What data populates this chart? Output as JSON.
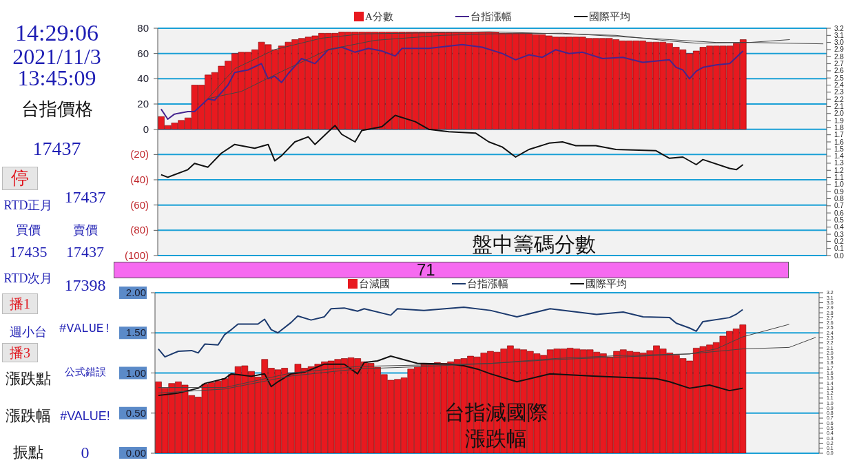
{
  "chart_data": [
    {
      "type": "other",
      "annotations": [
        "14:29:06",
        "2021/11/3",
        "13:45:09",
        "台指價格",
        "17437",
        "停",
        "RTD正月",
        "17437",
        "買價",
        "賣價",
        "17435",
        "17437",
        "RTD次月",
        "17398",
        "播1",
        "週小台",
        "#VALUE!",
        "播3",
        "漲跌點",
        "公式錯誤",
        "漲跌幅",
        "#VALUE!",
        "振點",
        "0"
      ]
    },
    {
      "type": "bar",
      "title": "盤中籌碼分數",
      "annotations": [
        "71"
      ],
      "legend": "top",
      "grid": "y",
      "categories": [
        null,
        null,
        null,
        null,
        null,
        null,
        null,
        null,
        null,
        null,
        null,
        null,
        null,
        null,
        null,
        null,
        null,
        null,
        null,
        null,
        null,
        null,
        null,
        null,
        null,
        null,
        null,
        null,
        null,
        null,
        null,
        null,
        null,
        null,
        null,
        null,
        null,
        null,
        null,
        null,
        null,
        null,
        null,
        null,
        null,
        null,
        null,
        null,
        null,
        null,
        null,
        null,
        null,
        null,
        null,
        null,
        null,
        null,
        null,
        null,
        null,
        null,
        null,
        null,
        null,
        null,
        null,
        null,
        null,
        null,
        null,
        null,
        null,
        null,
        null,
        null,
        null,
        null,
        null,
        null,
        null,
        null,
        null,
        null,
        null,
        null,
        null,
        null,
        null,
        null,
        null,
        null,
        null,
        null,
        null,
        null,
        null,
        null,
        null,
        null
      ],
      "ylim": [
        -100,
        80
      ],
      "yticks": [
        {
          "value": -100,
          "label": "(100)"
        },
        {
          "value": -80,
          "label": "(80)"
        },
        {
          "value": -60,
          "label": "(60)"
        },
        {
          "value": -40,
          "label": "(40)"
        },
        {
          "value": -20,
          "label": "(20)"
        },
        0,
        20,
        40,
        60,
        80
      ],
      "y2lim": [
        0,
        3.2
      ],
      "y2ticks": [
        {
          "value": 0,
          "label": "0.0"
        },
        0.1,
        0.2,
        0.3,
        0.4,
        0.5,
        0.6,
        0.7,
        0.8,
        0.9,
        {
          "value": 1,
          "label": "1.0"
        },
        1.1,
        1.2,
        1.3,
        1.4,
        1.5,
        1.6,
        1.7,
        1.8,
        1.9,
        {
          "value": 2,
          "label": "2.0"
        },
        2.1,
        2.2,
        2.3,
        2.4,
        2.5,
        2.6,
        2.7,
        2.8,
        2.9,
        {
          "value": 3,
          "label": "3.0"
        },
        3.1,
        3.2
      ],
      "series": [
        {
          "name": "A分數",
          "type": "bar",
          "color": "#e8191f",
          "values": [
            10,
            3,
            5,
            7,
            9,
            35,
            35,
            43,
            45,
            50,
            54,
            60,
            61,
            61,
            63,
            69,
            67,
            63,
            66,
            69,
            71,
            72,
            73,
            74,
            76,
            76,
            76,
            77,
            77,
            77,
            77,
            77,
            77,
            77,
            77,
            77,
            77,
            77,
            77,
            77,
            77,
            77,
            77,
            77,
            77,
            77,
            77,
            77,
            77,
            77,
            77,
            76,
            76,
            76,
            76,
            76,
            75,
            75,
            74,
            73,
            73,
            73,
            73,
            73,
            72,
            72,
            72,
            72,
            71,
            70,
            70,
            70,
            70,
            69,
            69,
            69,
            68,
            65,
            63,
            60,
            62,
            65,
            66,
            66,
            66,
            66,
            68,
            71,
            null,
            null,
            null,
            null,
            null,
            null,
            null,
            null,
            null,
            null,
            null,
            null
          ]
        },
        {
          "name": "台指漲幅",
          "type": "line",
          "color": "#45258f",
          "values": [
            16,
            8,
            12,
            null,
            14,
            14,
            null,
            24,
            23,
            null,
            35,
            45,
            null,
            47,
            null,
            52,
            40,
            42,
            37,
            44,
            null,
            56,
            null,
            52,
            null,
            63,
            null,
            65,
            null,
            61,
            null,
            64,
            null,
            62,
            null,
            58,
            64,
            null,
            null,
            null,
            64,
            null,
            null,
            null,
            null,
            67,
            null,
            null,
            65,
            null,
            null,
            60,
            null,
            55,
            null,
            59,
            null,
            57,
            null,
            63,
            null,
            60,
            null,
            61,
            null,
            null,
            56,
            null,
            null,
            57,
            null,
            null,
            53,
            null,
            null,
            null,
            55,
            49,
            47,
            40,
            46,
            49,
            null,
            51,
            null,
            52,
            57,
            62,
            null,
            null,
            null,
            null,
            null,
            null,
            null,
            null,
            null,
            null,
            null,
            null
          ]
        },
        {
          "name": "國際平均",
          "type": "line",
          "color": "#111111",
          "values": [
            -36,
            -38,
            null,
            null,
            -32,
            -27,
            null,
            -30,
            null,
            -19,
            null,
            -12,
            null,
            null,
            -15,
            null,
            -12,
            -25,
            -21,
            null,
            -10,
            null,
            -6,
            -12,
            null,
            -2,
            3,
            -4,
            null,
            -10,
            -1,
            null,
            null,
            2,
            null,
            11,
            null,
            null,
            6,
            null,
            0,
            null,
            null,
            -2,
            null,
            null,
            null,
            -3,
            null,
            -10,
            null,
            -14,
            null,
            -22,
            null,
            -16,
            null,
            null,
            -11,
            null,
            -10,
            null,
            -13,
            null,
            null,
            -13,
            null,
            null,
            -16,
            null,
            null,
            null,
            null,
            null,
            -17,
            -20,
            -23,
            null,
            -22,
            null,
            -28,
            -24,
            null,
            null,
            null,
            -31,
            -32,
            -28,
            null,
            null,
            null,
            null,
            null,
            null,
            null,
            null,
            null,
            null,
            null,
            null
          ]
        },
        {
          "type": "line",
          "axis": "y2",
          "color": "#444444",
          "values": [
            null,
            null,
            null,
            null,
            null,
            null,
            null,
            2.21,
            null,
            null,
            null,
            2.63,
            null,
            null,
            null,
            null,
            null,
            2.9,
            null,
            null,
            null,
            null,
            null,
            null,
            3.06,
            null,
            null,
            null,
            null,
            null,
            3.12,
            null,
            null,
            null,
            null,
            null,
            null,
            null,
            null,
            null,
            null,
            null,
            null,
            null,
            null,
            null,
            null,
            null,
            null,
            3.15,
            null,
            null,
            null,
            null,
            null,
            null,
            null,
            null,
            null,
            null,
            null,
            null,
            null,
            null,
            null,
            null,
            null,
            null,
            3.1,
            null,
            null,
            null,
            null,
            null,
            null,
            null,
            3.02,
            null,
            null,
            null,
            2.99,
            null,
            null,
            null,
            null,
            null,
            null,
            null,
            3.0,
            null,
            null,
            null,
            null,
            null,
            3.04,
            null,
            null,
            null,
            null,
            null
          ]
        },
        {
          "type": "line",
          "axis": "y2",
          "color": "#444444",
          "values": [
            null,
            null,
            null,
            null,
            null,
            null,
            null,
            2.21,
            null,
            null,
            null,
            null,
            2.31,
            null,
            null,
            null,
            null,
            null,
            2.59,
            null,
            null,
            null,
            null,
            null,
            null,
            2.9,
            null,
            null,
            null,
            null,
            null,
            null,
            3.03,
            null,
            null,
            null,
            null,
            null,
            null,
            null,
            null,
            null,
            3.1,
            null,
            null,
            null,
            null,
            null,
            null,
            3.12,
            null,
            null,
            null,
            null,
            null,
            null,
            null,
            null,
            null,
            null,
            3.13,
            null,
            null,
            null,
            null,
            null,
            null,
            null,
            null,
            null,
            null,
            null,
            null,
            null,
            null,
            null,
            3.04,
            null,
            null,
            null,
            null,
            null,
            null,
            3.0,
            null,
            null,
            null,
            null,
            3.0,
            null,
            null,
            null,
            null,
            null,
            null,
            null,
            null,
            null,
            null,
            2.98
          ]
        }
      ]
    },
    {
      "type": "bar",
      "title": "台指減國際漲跌幅",
      "legend": "top",
      "grid": "y",
      "categories": [
        null,
        null,
        null,
        null,
        null,
        null,
        null,
        null,
        null,
        null,
        null,
        null,
        null,
        null,
        null,
        null,
        null,
        null,
        null,
        null,
        null,
        null,
        null,
        null,
        null,
        null,
        null,
        null,
        null,
        null,
        null,
        null,
        null,
        null,
        null,
        null,
        null,
        null,
        null,
        null,
        null,
        null,
        null,
        null,
        null,
        null,
        null,
        null,
        null,
        null,
        null,
        null,
        null,
        null,
        null,
        null,
        null,
        null,
        null,
        null,
        null,
        null,
        null,
        null,
        null,
        null,
        null,
        null,
        null,
        null,
        null,
        null,
        null,
        null,
        null,
        null,
        null,
        null,
        null,
        null,
        null,
        null,
        null,
        null,
        null,
        null,
        null,
        null,
        null,
        null,
        null,
        null,
        null,
        null,
        null,
        null,
        null,
        null,
        null,
        null
      ],
      "ylim": [
        0,
        2
      ],
      "yticks": [
        {
          "value": 0,
          "label": "0.00"
        },
        {
          "value": 0.5,
          "label": "0.50"
        },
        {
          "value": 1,
          "label": "1.00"
        },
        {
          "value": 1.5,
          "label": "1.50"
        },
        {
          "value": 2,
          "label": "2.00"
        }
      ],
      "y2lim": [
        0,
        3.2
      ],
      "y2ticks": [
        {
          "value": 0,
          "label": "0.0"
        },
        0.1,
        0.2,
        0.3,
        0.4,
        0.5,
        0.6,
        0.7,
        0.8,
        0.9,
        {
          "value": 1,
          "label": "1.0"
        },
        1.1,
        1.2,
        1.3,
        1.4,
        1.5,
        1.6,
        1.7,
        1.8,
        1.9,
        {
          "value": 2,
          "label": "2.0"
        },
        2.1,
        2.2,
        2.3,
        2.4,
        2.5,
        2.6,
        2.7,
        2.8,
        2.9,
        {
          "value": 3,
          "label": "3.0"
        },
        3.1,
        3.2
      ],
      "series": [
        {
          "name": "台減國",
          "type": "bar",
          "color": "#e8191f",
          "values": [
            0.89,
            0.81,
            0.87,
            0.89,
            0.85,
            0.72,
            0.7,
            0.86,
            0.88,
            0.9,
            0.93,
            0.98,
            1.08,
            1.09,
            1.02,
            0.95,
            1.17,
            1.06,
            1.04,
            1.06,
            1.0,
            1.11,
            1.06,
            1.08,
            1.11,
            1.14,
            1.15,
            1.17,
            1.18,
            1.19,
            1.18,
            1.14,
            1.12,
            1.07,
            0.98,
            0.91,
            0.92,
            0.94,
            1.05,
            1.08,
            1.12,
            1.12,
            1.13,
            1.12,
            1.14,
            1.17,
            1.18,
            1.21,
            1.2,
            1.25,
            1.27,
            1.26,
            1.3,
            1.34,
            1.3,
            1.29,
            1.27,
            1.24,
            1.22,
            1.29,
            1.3,
            1.3,
            1.31,
            1.3,
            1.29,
            1.29,
            1.26,
            1.24,
            1.2,
            1.27,
            1.29,
            1.27,
            1.26,
            1.25,
            1.28,
            1.34,
            1.3,
            1.25,
            1.22,
            1.18,
            1.15,
            1.31,
            1.33,
            1.35,
            1.38,
            1.46,
            1.52,
            1.55,
            1.6,
            null,
            null,
            null,
            null,
            null,
            null,
            null,
            null,
            null,
            null,
            null
          ]
        },
        {
          "name": "台指漲幅",
          "type": "line",
          "color": "#1c3a6e",
          "values": [
            1.3,
            1.2,
            null,
            1.27,
            null,
            1.28,
            1.25,
            1.36,
            null,
            1.35,
            1.48,
            1.54,
            1.61,
            null,
            null,
            1.61,
            1.67,
            1.54,
            1.5,
            null,
            1.63,
            1.71,
            null,
            1.66,
            null,
            1.7,
            1.8,
            null,
            1.81,
            null,
            1.77,
            1.8,
            null,
            null,
            null,
            1.72,
            1.8,
            null,
            null,
            null,
            1.78,
            null,
            null,
            null,
            null,
            null,
            1.82,
            null,
            null,
            null,
            1.78,
            null,
            null,
            null,
            1.7,
            null,
            null,
            null,
            null,
            1.8,
            null,
            null,
            null,
            null,
            null,
            null,
            1.73,
            null,
            null,
            null,
            1.76,
            null,
            null,
            1.7,
            null,
            null,
            null,
            1.69,
            1.62,
            null,
            1.56,
            1.52,
            1.64,
            null,
            null,
            null,
            1.69,
            1.73,
            1.79,
            null,
            null,
            null,
            null,
            null,
            null,
            null,
            null,
            null,
            null,
            null
          ]
        },
        {
          "name": "國際平均",
          "type": "line",
          "color": "#111111",
          "values": [
            0.72,
            null,
            null,
            0.75,
            null,
            null,
            0.81,
            0.87,
            null,
            null,
            0.93,
            0.99,
            null,
            null,
            0.96,
            null,
            0.99,
            0.83,
            0.89,
            null,
            0.99,
            null,
            1.01,
            null,
            null,
            1.11,
            null,
            null,
            1.11,
            null,
            0.99,
            1.13,
            null,
            1.15,
            null,
            1.21,
            null,
            null,
            null,
            1.12,
            null,
            null,
            null,
            null,
            1.11,
            null,
            1.09,
            null,
            1.05,
            null,
            0.99,
            null,
            null,
            null,
            0.89,
            null,
            null,
            null,
            null,
            0.99,
            null,
            null,
            null,
            null,
            null,
            null,
            0.96,
            null,
            null,
            null,
            null,
            null,
            null,
            null,
            null,
            0.93,
            null,
            0.89,
            null,
            null,
            0.81,
            null,
            null,
            0.85,
            null,
            null,
            0.78,
            null,
            0.81,
            null,
            null,
            null,
            null,
            null,
            null,
            null,
            null,
            null,
            null,
            null
          ]
        },
        {
          "type": "line",
          "axis": "y2",
          "color": "#444444",
          "values": [
            1.31,
            null,
            null,
            null,
            null,
            null,
            null,
            null,
            null,
            null,
            1.31,
            null,
            null,
            null,
            null,
            null,
            null,
            null,
            null,
            null,
            1.6,
            null,
            null,
            null,
            null,
            null,
            null,
            null,
            null,
            null,
            1.73,
            null,
            null,
            null,
            null,
            null,
            null,
            null,
            null,
            null,
            1.76,
            null,
            null,
            null,
            null,
            null,
            null,
            null,
            null,
            null,
            1.79,
            null,
            null,
            null,
            null,
            null,
            null,
            null,
            null,
            null,
            1.87,
            null,
            null,
            null,
            null,
            null,
            null,
            null,
            null,
            null,
            1.92,
            null,
            null,
            null,
            null,
            null,
            null,
            null,
            null,
            null,
            1.98,
            null,
            null,
            null,
            2.08,
            null,
            null,
            null,
            2.32,
            null,
            null,
            null,
            null,
            null,
            null,
            2.57,
            null,
            null,
            null,
            null
          ]
        },
        {
          "type": "line",
          "axis": "y2",
          "color": "#444444",
          "values": [
            1.2,
            null,
            null,
            null,
            null,
            null,
            null,
            null,
            null,
            null,
            1.28,
            null,
            null,
            null,
            null,
            null,
            null,
            null,
            null,
            null,
            1.54,
            null,
            null,
            null,
            null,
            null,
            null,
            null,
            null,
            null,
            1.68,
            null,
            null,
            null,
            null,
            null,
            null,
            null,
            null,
            null,
            1.73,
            null,
            null,
            null,
            null,
            null,
            null,
            null,
            null,
            null,
            1.79,
            null,
            null,
            null,
            null,
            null,
            null,
            null,
            null,
            null,
            1.89,
            null,
            null,
            null,
            null,
            null,
            null,
            null,
            null,
            null,
            1.95,
            null,
            null,
            null,
            null,
            null,
            null,
            null,
            null,
            null,
            1.98,
            null,
            null,
            null,
            null,
            null,
            null,
            null,
            2.08,
            null,
            null,
            null,
            null,
            null,
            null,
            2.11,
            null,
            null,
            null,
            2.31
          ]
        }
      ]
    }
  ]
}
